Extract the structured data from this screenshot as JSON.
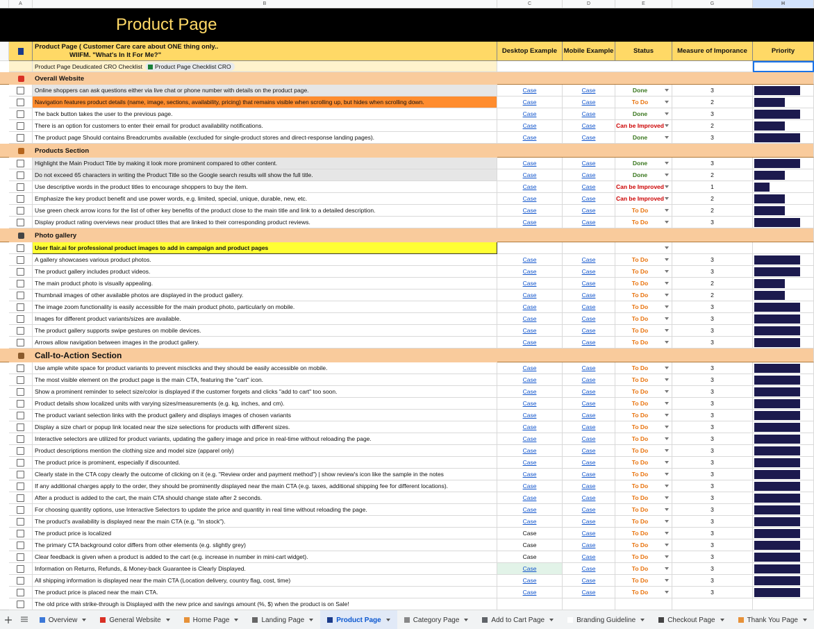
{
  "columns": [
    "A",
    "B",
    "C",
    "D",
    "E",
    "G",
    "H"
  ],
  "title": "Product Page",
  "header": {
    "line1": "Product Page ( Customer Care care about ONE thing only..",
    "line2": "WIIFM.  \"What's In It For Me?\"",
    "desktop": "Desktop Example",
    "mobile": "Mobile Example",
    "status": "Status",
    "importance": "Measure of Imporance",
    "priority": "Priority"
  },
  "checklist": {
    "label": "Product Page Deudicated CRO Checklist",
    "chip": "Product Page Checklist CRO"
  },
  "status_colors": {
    "Done": "#38761d",
    "To Do": "#e8710a",
    "Can be Improved": "#cc0000"
  },
  "priority_color": "#1c1a4e",
  "sections": [
    {
      "title": "Overall Website",
      "icon": "#d93025",
      "rows": [
        {
          "text": "Online shoppers can ask questions either via live chat or phone number with details on the product page.",
          "desktop": "Case",
          "mobile": "Case",
          "status": "Done",
          "importance": 3,
          "fill": "#e6e6e6"
        },
        {
          "text": "Navigation features product details (name, image, sections, availability, pricing) that remains visible when scrolling up, but hides when scrolling down.",
          "desktop": "Case",
          "mobile": "Case",
          "status": "To Do",
          "importance": 2,
          "fill": "#ff8c2e"
        },
        {
          "text": "The back button takes the user to the previous page.",
          "desktop": "Case",
          "mobile": "Case",
          "status": "Done",
          "importance": 3
        },
        {
          "text": "There is an option for customers to enter their email for product availability notifications.",
          "desktop": "Case",
          "mobile": "Case",
          "status": "Can be Improved",
          "importance": 2
        },
        {
          "text": "The product page Should contains Breadcrumbs available (excluded for single-product stores and direct-response landing pages).",
          "desktop": "Case",
          "mobile": "Case",
          "status": "Done",
          "importance": 3
        }
      ]
    },
    {
      "title": "Products Section",
      "icon": "#b5651d",
      "rows": [
        {
          "text": "Highlight the Main Product Title by making it look more prominent compared to other content.",
          "desktop": "Case",
          "mobile": "Case",
          "status": "Done",
          "importance": 3,
          "fill": "#e6e6e6"
        },
        {
          "text": "Do not exceed 65 characters in writing the Product Title so the Google search results will show the full title.",
          "desktop": "Case",
          "mobile": "Case",
          "status": "Done",
          "importance": 2,
          "fill": "#e6e6e6"
        },
        {
          "text": "Use descriptive words in the product titles to encourage shoppers to buy the item.",
          "desktop": "Case",
          "mobile": "Case",
          "status": "Can be Improved",
          "importance": 1
        },
        {
          "text": "Emphasize the key product benefit and use power words, e.g. limited, special, unique, durable, new, etc.",
          "desktop": "Case",
          "mobile": "Case",
          "status": "Can be Improved",
          "importance": 2
        },
        {
          "text": "Use green check arrow icons for the list of other key benefits of the product close to the main title and link to a detailed description.",
          "desktop": "Case",
          "mobile": "Case",
          "status": "To Do",
          "importance": 2
        },
        {
          "text": "Display product rating overviews near product titles that are linked to their corresponding product reviews.",
          "desktop": "Case",
          "mobile": "Case",
          "status": "To Do",
          "importance": 3
        }
      ]
    },
    {
      "title": "Photo gallery",
      "icon": "#444444",
      "rows": [
        {
          "text": "User flair.ai for professional product images to add in campaign and product pages",
          "fill": "#ffff33",
          "bold": true
        },
        {
          "text": "A gallery showcases various product photos.",
          "desktop": "Case",
          "mobile": "Case",
          "status": "To Do",
          "importance": 3
        },
        {
          "text": "The product gallery includes product videos.",
          "desktop": "Case",
          "mobile": "Case",
          "status": "To Do",
          "importance": 3
        },
        {
          "text": "The main product photo is visually appealing.",
          "desktop": "Case",
          "mobile": "Case",
          "status": "To Do",
          "importance": 2
        },
        {
          "text": "Thumbnail images of other available photos are displayed in the product gallery.",
          "desktop": "Case",
          "mobile": "Case",
          "status": "To Do",
          "importance": 2
        },
        {
          "text": "The image zoom functionality is easily accessible for the main product photo, particularly on mobile.",
          "desktop": "Case",
          "mobile": "Case",
          "status": "To Do",
          "importance": 3
        },
        {
          "text": "Images for different product variants/sizes are available.",
          "desktop": "Case",
          "mobile": "Case",
          "status": "To Do",
          "importance": 3
        },
        {
          "text": "The product gallery supports swipe gestures on mobile devices.",
          "desktop": "Case",
          "mobile": "Case",
          "status": "To Do",
          "importance": 3
        },
        {
          "text": "Arrows allow navigation between images in the product gallery.",
          "desktop": "Case",
          "mobile": "Case",
          "status": "To Do",
          "importance": 3
        }
      ]
    },
    {
      "title": "Call-to-Action Section",
      "icon": "#8a5a2b",
      "large": true,
      "rows": [
        {
          "text": "Use ample white space for product variants to prevent misclicks and they should be easily accessible on mobile.",
          "desktop": "Case",
          "mobile": "Case",
          "status": "To Do",
          "importance": 3
        },
        {
          "text": "The most visible element on the product page is the main CTA, featuring the \"cart\" icon.",
          "desktop": "Case",
          "mobile": "Case",
          "status": "To Do",
          "importance": 3
        },
        {
          "text": "Show a prominent reminder to select size/color is displayed if the customer forgets and clicks \"add to cart\" too soon.",
          "desktop": "Case",
          "mobile": "Case",
          "status": "To Do",
          "importance": 3
        },
        {
          "text": "Product details show localized units with varying sizes/measurements (e.g. kg, inches, and cm).",
          "desktop": "Case",
          "mobile": "Case",
          "status": "To Do",
          "importance": 3
        },
        {
          "text": "The product variant selection links with the product gallery and displays images of chosen variants",
          "desktop": "Case",
          "mobile": "Case",
          "status": "To Do",
          "importance": 3
        },
        {
          "text": "Display a size chart or popup link located near the size selections for products with different sizes.",
          "desktop": "Case",
          "mobile": "Case",
          "status": "To Do",
          "importance": 3
        },
        {
          "text": "Interactive selectors are utilized for product variants, updating the gallery image and price in real-time without reloading the page.",
          "desktop": "Case",
          "mobile": "Case",
          "status": "To Do",
          "importance": 3
        },
        {
          "text": "Product descriptions mention the clothing size and model size (apparel only)",
          "desktop": "Case",
          "mobile": "Case",
          "status": "To Do",
          "importance": 3
        },
        {
          "text": "The product price is prominent, especially if discounted.",
          "desktop": "Case",
          "mobile": "Case",
          "status": "To Do",
          "importance": 3
        },
        {
          "text": "Clearly state in the CTA copy clearly the outcome of clicking on it (e.g. \"Review order and payment method\") | show review's icon like the sample in the notes",
          "desktop": "Case",
          "mobile": "Case",
          "status": "To Do",
          "importance": 3
        },
        {
          "text": "If any additional charges apply to the order, they should be prominently displayed near the main CTA (e.g. taxes, additional shipping fee for different locations).",
          "desktop": "Case",
          "mobile": "Case",
          "status": "To Do",
          "importance": 3
        },
        {
          "text": "After a product is added to the cart, the main CTA should change state after 2 seconds.",
          "desktop": "Case",
          "mobile": "Case",
          "status": "To Do",
          "importance": 3
        },
        {
          "text": "For choosing quantity options,  use Interactive Selectors to update the price and quantity in real time without reloading the page.",
          "desktop": "Case",
          "mobile": "Case",
          "status": "To Do",
          "importance": 3
        },
        {
          "text": "The product's availability is displayed near the main CTA (e.g. \"In stock\").",
          "desktop": "Case",
          "mobile": "Case",
          "status": "To Do",
          "importance": 3
        },
        {
          "text": "The product price is localized",
          "desktop": "Case",
          "mobile": "Case",
          "status": "To Do",
          "importance": 3,
          "desktop_link": false
        },
        {
          "text": "The primary CTA background color differs from other elements (e.g. slightly grey)",
          "desktop": "Case",
          "mobile": "Case",
          "status": "To Do",
          "importance": 3,
          "desktop_link": false
        },
        {
          "text": "Clear feedback is given when a product is added to the cart (e.g. increase in number in mini-cart widget).",
          "desktop": "Case",
          "mobile": "Case",
          "status": "To Do",
          "importance": 3,
          "desktop_link": false
        },
        {
          "text": "Information on Returns, Refunds, & Money-back Guarantee is Clearly Displayed.",
          "desktop": "Case",
          "mobile": "Case",
          "status": "To Do",
          "importance": 3,
          "desktop_fill": "#e2f3e8"
        },
        {
          "text": "All shipping information is displayed near the main CTA (Location delivery, country flag, cost, time)",
          "desktop": "Case",
          "mobile": "Case",
          "status": "To Do",
          "importance": 3
        },
        {
          "text": "The product price is placed near the main CTA.",
          "desktop": "Case",
          "mobile": "Case",
          "status": "To Do",
          "importance": 3
        },
        {
          "text": "The old price with strike-through is Displayed with the new price and savings amount (%, $) when the product is on Sale!"
        }
      ]
    }
  ],
  "tabs": [
    "Overview",
    "General Website",
    "Home Page",
    "Landing Page",
    "Product Page",
    "Category Page",
    "Add to Cart Page",
    "Branding Guideline",
    "Checkout Page",
    "Thank You Page"
  ],
  "active_tab": 4
}
